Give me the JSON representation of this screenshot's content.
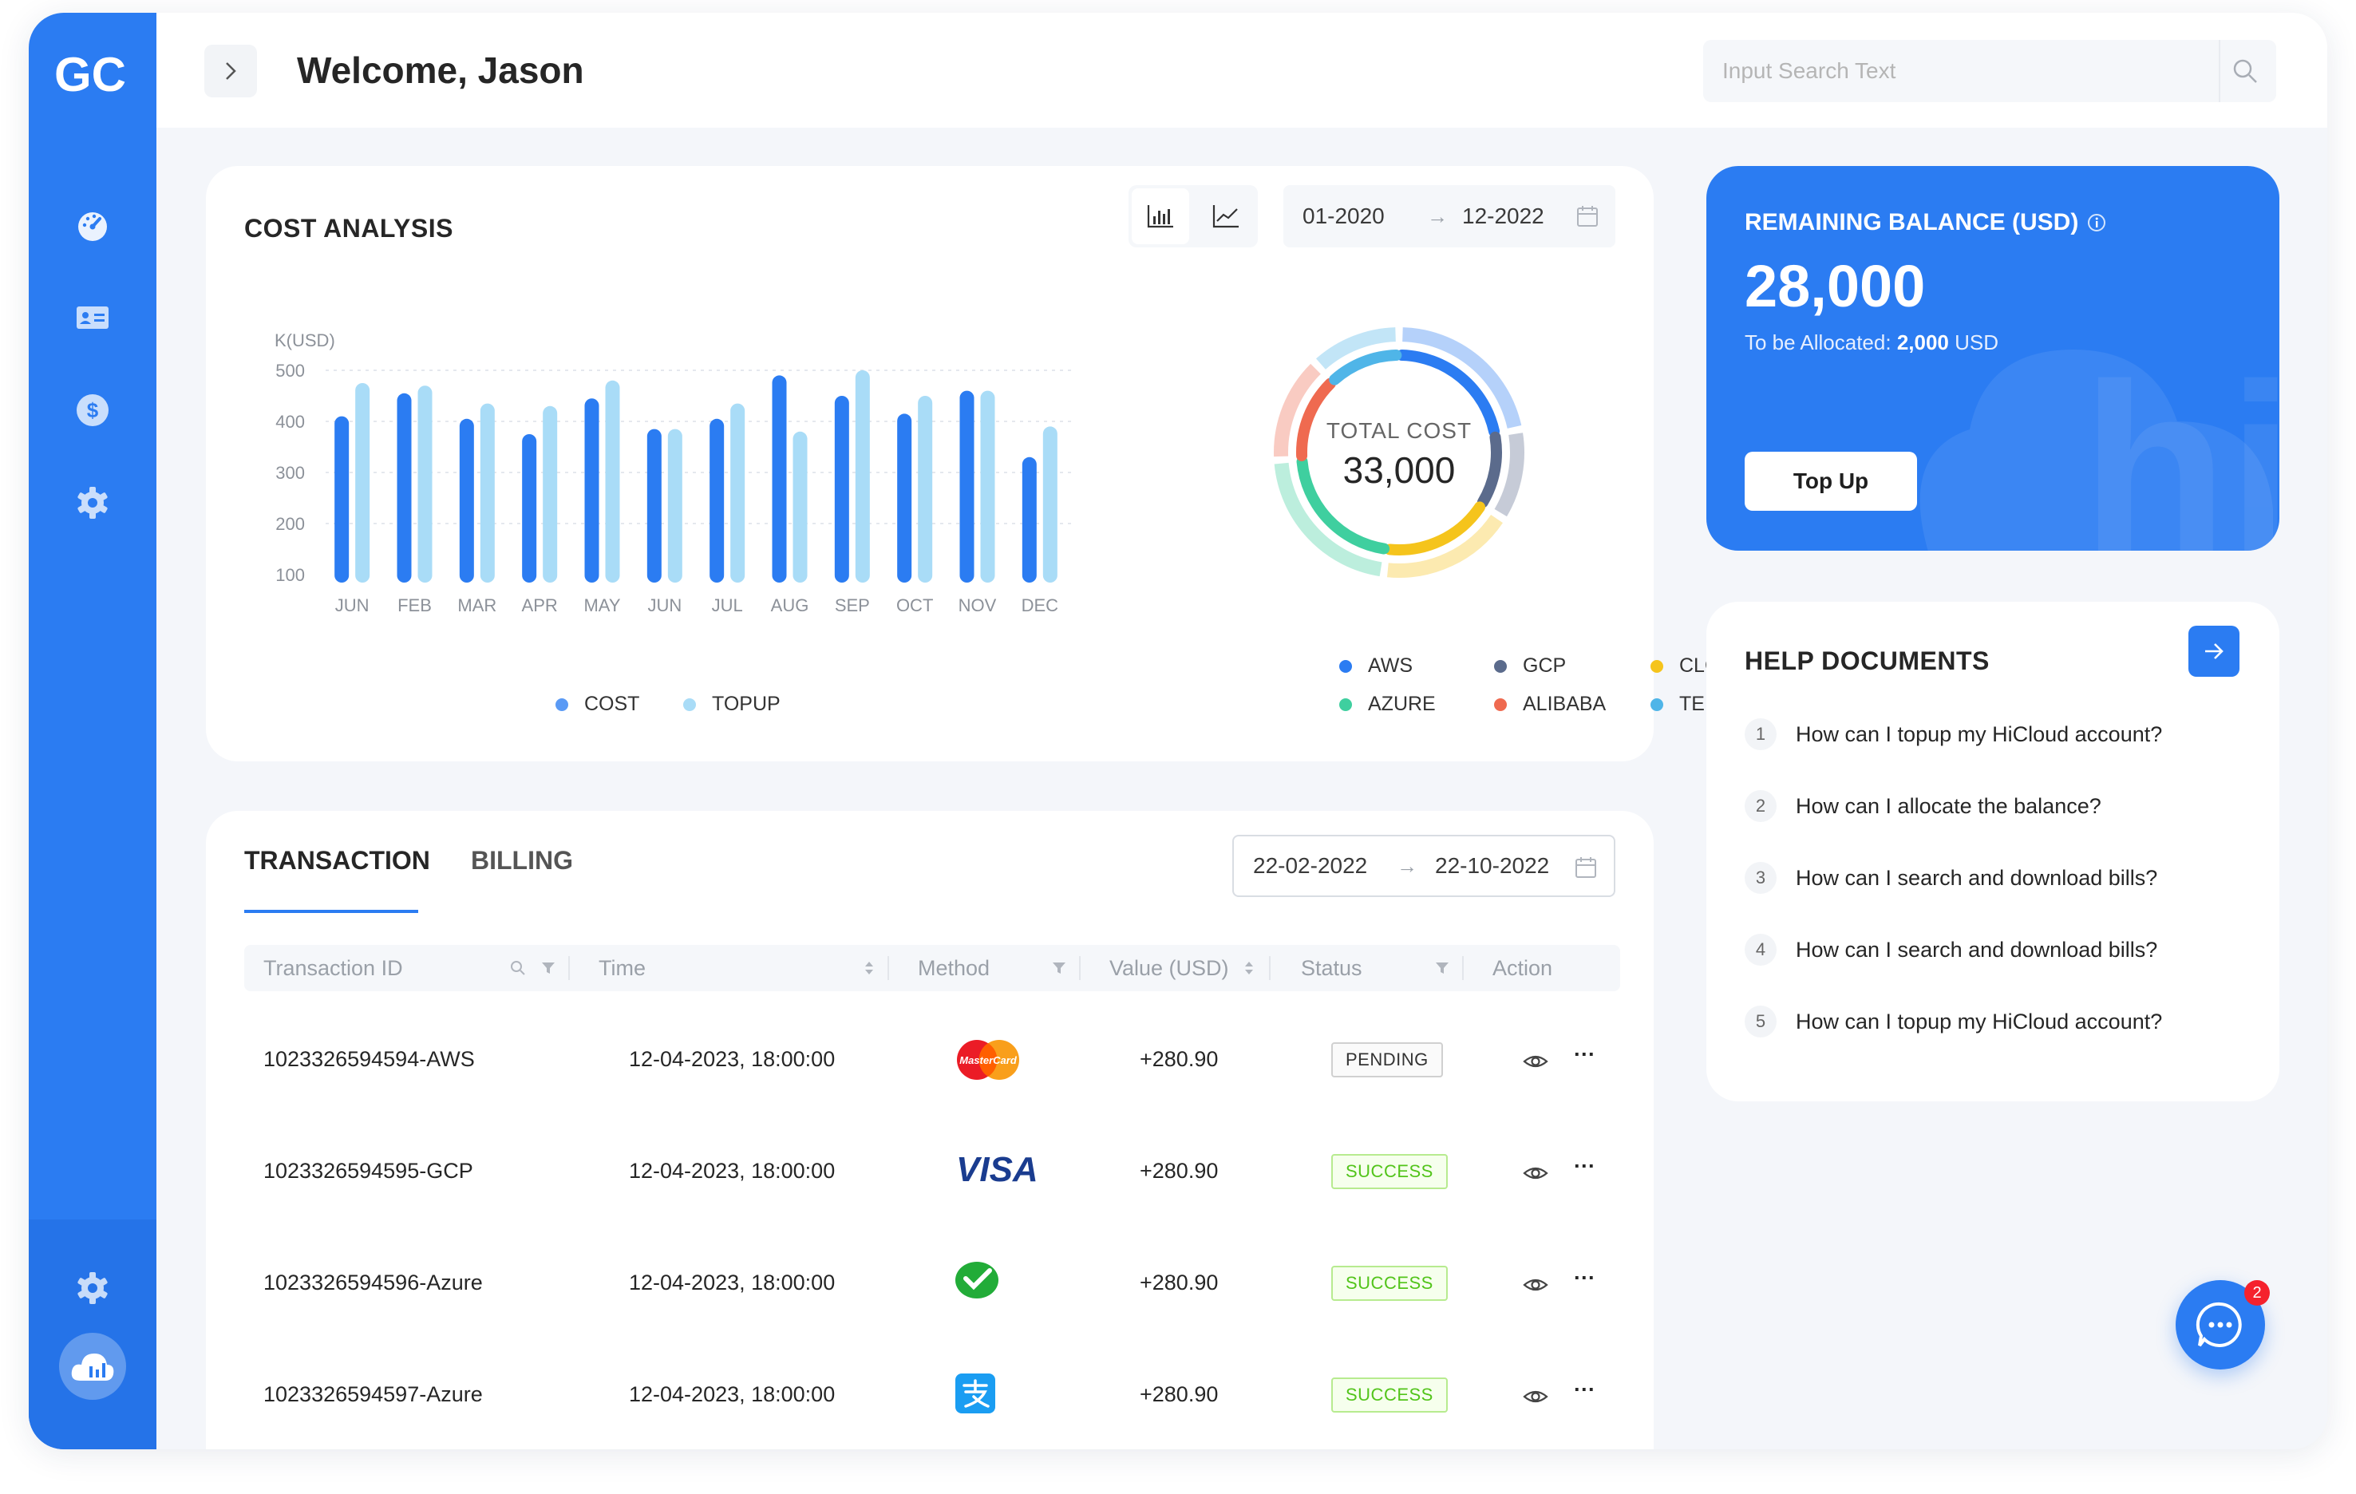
{
  "header": {
    "welcome": "Welcome, Jason",
    "search_placeholder": "Input Search Text"
  },
  "nav": {
    "logo_text": "GC",
    "items": [
      "dashboard-icon",
      "id-card-icon",
      "dollar-icon",
      "settings-icon"
    ],
    "bottom": [
      "settings-icon",
      "cloud-avatar-icon"
    ]
  },
  "cost_analysis": {
    "title": "COST ANALYSIS",
    "date_start": "01-2020",
    "date_arrow": "→",
    "date_end": "12-2022",
    "legend": {
      "cost": "COST",
      "topup": "TOPUP"
    },
    "donut_label": "TOTAL COST",
    "donut_value": "33,000",
    "providers": [
      "AWS",
      "GCP",
      "CLOUDFLARE",
      "AZURE",
      "ALIBABA",
      "TENCENT"
    ]
  },
  "chart_data": {
    "type": "bar",
    "title": "",
    "ylabel": "K(USD)",
    "xlabel": "",
    "ylim": [
      100,
      500
    ],
    "yticks": [
      "500",
      "400",
      "300",
      "200",
      "100"
    ],
    "categories": [
      "JUN",
      "FEB",
      "MAR",
      "APR",
      "MAY",
      "JUN",
      "JUL",
      "AUG",
      "SEP",
      "OCT",
      "NOV",
      "DEC"
    ],
    "series": [
      {
        "name": "COST",
        "color": "#2b7cf2",
        "values": [
          410,
          455,
          405,
          375,
          445,
          385,
          405,
          490,
          450,
          415,
          460,
          330
        ]
      },
      {
        "name": "TOPUP",
        "color": "#a9dcf7",
        "values": [
          475,
          470,
          435,
          430,
          480,
          385,
          435,
          380,
          500,
          450,
          460,
          390
        ]
      }
    ]
  },
  "donut_data": {
    "type": "pie",
    "title": "TOTAL COST",
    "total": "33,000",
    "slices": [
      {
        "name": "AWS",
        "color": "#2b7cf2",
        "value": 22
      },
      {
        "name": "GCP",
        "color": "#5b6b8c",
        "value": 12
      },
      {
        "name": "CLOUDFLARE",
        "color": "#f5c41c",
        "value": 18
      },
      {
        "name": "AZURE",
        "color": "#3fcf9f",
        "value": 22
      },
      {
        "name": "ALIBABA",
        "color": "#ef6a50",
        "value": 14
      },
      {
        "name": "TENCENT",
        "color": "#4fb5e8",
        "value": 12
      }
    ]
  },
  "balance": {
    "title": "REMAINING BALANCE (USD)",
    "amount": "28,000",
    "alloc_label": "To be Allocated: ",
    "alloc_value": "2,000",
    "alloc_unit": " USD",
    "topup_label": "Top Up",
    "watermark": "hi"
  },
  "help": {
    "title": "HELP DOCUMENTS",
    "items": [
      {
        "num": "1",
        "text": "How can I topup my HiCloud account?"
      },
      {
        "num": "2",
        "text": "How can I allocate the balance?"
      },
      {
        "num": "3",
        "text": "How can I search and download bills?"
      },
      {
        "num": "4",
        "text": "How can I search and download bills?"
      },
      {
        "num": "5",
        "text": "How can I topup my HiCloud account?"
      }
    ]
  },
  "transactions": {
    "tabs": [
      "TRANSACTION",
      "BILLING"
    ],
    "date_start": "22-02-2022",
    "date_arrow": "→",
    "date_end": "22-10-2022",
    "columns": [
      "Transaction ID",
      "Time",
      "Method",
      "Value (USD)",
      "Status",
      "Action"
    ],
    "rows": [
      {
        "id": "1023326594594-AWS",
        "time": "12-04-2023, 18:00:00",
        "method": "MasterCard",
        "value": "+280.90",
        "status": "PENDING"
      },
      {
        "id": "1023326594595-GCP",
        "time": "12-04-2023, 18:00:00",
        "method": "VISA",
        "value": "+280.90",
        "status": "SUCCESS"
      },
      {
        "id": "1023326594596-Azure",
        "time": "12-04-2023, 18:00:00",
        "method": "WeChat Pay",
        "value": "+280.90",
        "status": "SUCCESS"
      },
      {
        "id": "1023326594597-Azure",
        "time": "12-04-2023, 18:00:00",
        "method": "Alipay",
        "value": "+280.90",
        "status": "SUCCESS"
      }
    ],
    "action_more": "···"
  },
  "chat": {
    "badge": "2"
  }
}
